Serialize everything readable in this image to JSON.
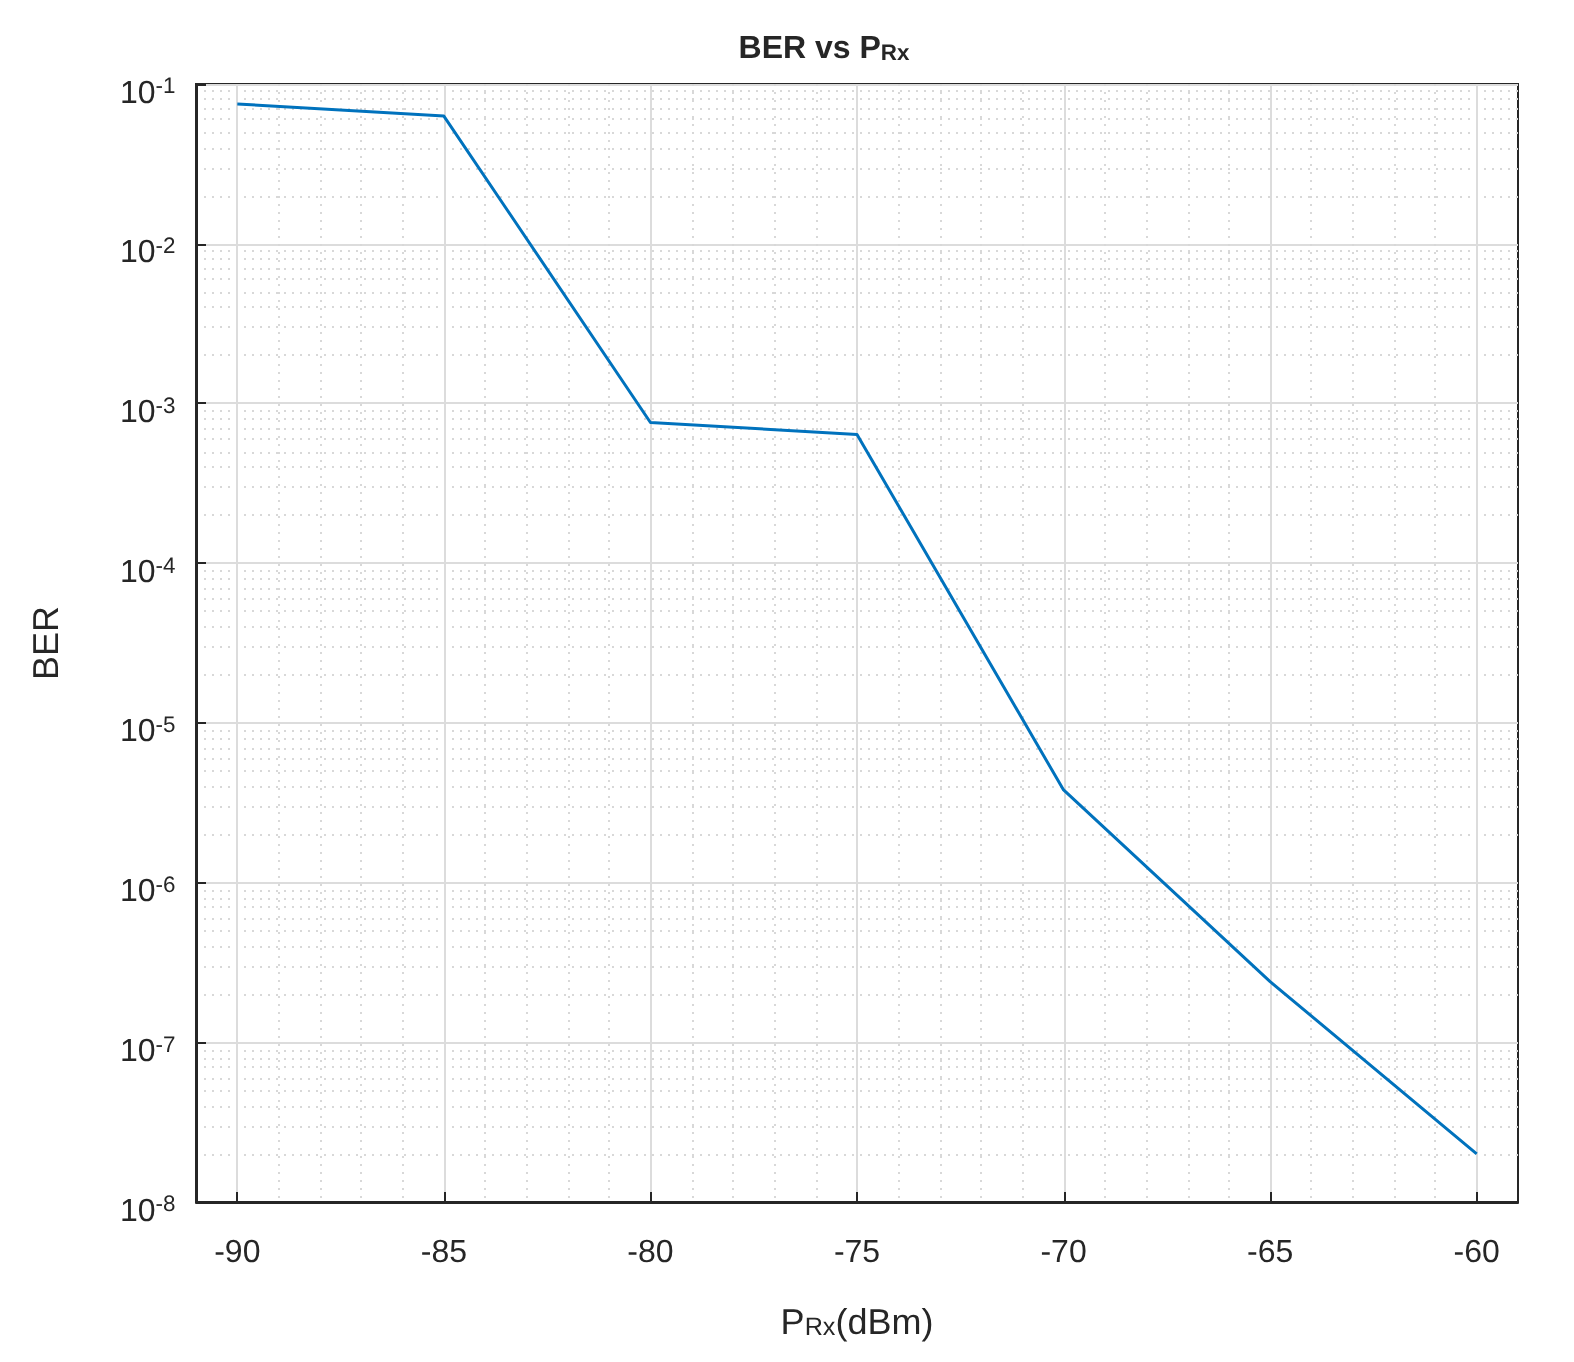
{
  "chart_data": {
    "type": "line",
    "title": "BER vs P$_{Rx}$",
    "xlabel": "P$_{Rx}$(dBm)",
    "ylabel": "BER",
    "x": [
      -90,
      -85,
      -80,
      -75,
      -70,
      -65,
      -60
    ],
    "series": [
      {
        "color": "#0072bd",
        "values": [
          0.075,
          0.063,
          0.00076,
          0.00064,
          3.8e-06,
          2.4e-07,
          2e-08
        ]
      }
    ],
    "xlim": [
      -91,
      -59
    ],
    "xticks": [
      -90,
      -85,
      -80,
      -75,
      -70,
      -65,
      -60
    ],
    "ylim": [
      1e-08,
      0.1
    ],
    "yticks": [
      {
        "value": 1e-08,
        "label": "10$^{-8}$"
      },
      {
        "value": 1e-07,
        "label": "10$^{-7}$"
      },
      {
        "value": 1e-06,
        "label": "10$^{-6}$"
      },
      {
        "value": 1e-05,
        "label": "10$^{-5}$"
      },
      {
        "value": 0.0001,
        "label": "10$^{-4}$"
      },
      {
        "value": 0.001,
        "label": "10$^{-3}$"
      },
      {
        "value": 0.01,
        "label": "10$^{-2}$"
      },
      {
        "value": 0.1,
        "label": "10$^{-1}$"
      }
    ],
    "log": "y",
    "grid": true,
    "marker": "none",
    "line_style": "solid"
  }
}
